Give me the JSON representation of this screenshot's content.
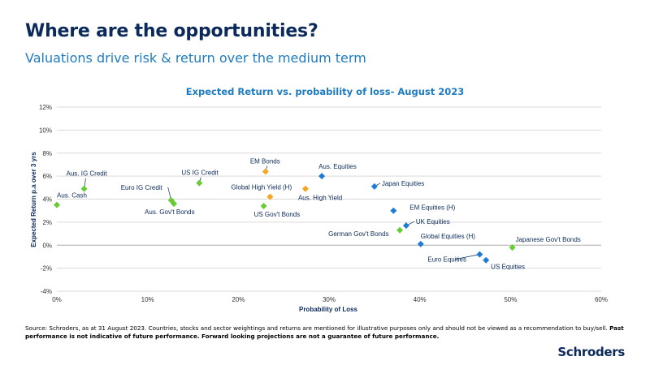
{
  "header": {
    "title": "Where are the opportunities?",
    "subtitle": "Valuations drive risk & return over the medium term"
  },
  "chart_data": {
    "type": "scatter",
    "title": "Expected Return vs. probability of loss- August 2023",
    "xlabel": "Probability of Loss",
    "ylabel": "Expected Return p.a over 3 yrs",
    "xlim": [
      0,
      60
    ],
    "ylim": [
      -4,
      12
    ],
    "xticks": [
      "0%",
      "10%",
      "20%",
      "30%",
      "40%",
      "50%",
      "60%"
    ],
    "yticks": [
      "12%",
      "10%",
      "8%",
      "6%",
      "4%",
      "2%",
      "0%",
      "-2%",
      "-4%"
    ],
    "grid": "horizontal",
    "categories": {
      "bonds": {
        "color": "#66cc33"
      },
      "credit": {
        "color": "#f5a623"
      },
      "equities": {
        "color": "#1f7bd6"
      }
    },
    "points": [
      {
        "label": "Aus. Cash",
        "x": 0.0,
        "y": 3.5,
        "group": "bonds"
      },
      {
        "label": "Aus. IG Credit",
        "x": 3.0,
        "y": 4.9,
        "group": "bonds"
      },
      {
        "label": "Euro IG Credit",
        "x": 12.6,
        "y": 3.9,
        "group": "bonds"
      },
      {
        "label": "Aus. Gov't Bonds",
        "x": 12.9,
        "y": 3.6,
        "group": "bonds"
      },
      {
        "label": "US IG Credit",
        "x": 15.7,
        "y": 5.4,
        "group": "bonds"
      },
      {
        "label": "US Gov't Bonds",
        "x": 22.8,
        "y": 3.4,
        "group": "bonds"
      },
      {
        "label": "EM Bonds",
        "x": 23.0,
        "y": 6.4,
        "group": "credit"
      },
      {
        "label": "Global High Yield (H)",
        "x": 23.5,
        "y": 4.2,
        "group": "credit"
      },
      {
        "label": "Aus. High Yield",
        "x": 27.4,
        "y": 4.9,
        "group": "credit"
      },
      {
        "label": "Aus. Equities",
        "x": 29.2,
        "y": 6.0,
        "group": "equities"
      },
      {
        "label": "Japan Equities",
        "x": 35.0,
        "y": 5.1,
        "group": "equities"
      },
      {
        "label": "EM Equities (H)",
        "x": 37.1,
        "y": 3.0,
        "group": "equities"
      },
      {
        "label": "German Gov't Bonds",
        "x": 37.8,
        "y": 1.3,
        "group": "bonds"
      },
      {
        "label": "UK Equities",
        "x": 38.5,
        "y": 1.7,
        "group": "equities"
      },
      {
        "label": "Global Equities (H)",
        "x": 40.1,
        "y": 0.1,
        "group": "equities"
      },
      {
        "label": "Euro Equities",
        "x": 46.6,
        "y": -0.8,
        "group": "equities"
      },
      {
        "label": "US Equities",
        "x": 47.3,
        "y": -1.3,
        "group": "equities"
      },
      {
        "label": "Japanese Gov't Bonds",
        "x": 50.2,
        "y": -0.2,
        "group": "bonds"
      }
    ]
  },
  "footnote": {
    "text": "Source: Schroders, as at 31 August 2023. Countries, stocks and sector weightings and returns are mentioned for illustrative purposes only and should not be viewed as a recommendation to buy/sell. ",
    "bold": "Past performance is not indicative of future performance. Forward looking projections are not a guarantee of future performance."
  },
  "brand": {
    "logo_text": "Schroders",
    "navy": "#0b2a5b",
    "blue": "#1f7bbf"
  }
}
